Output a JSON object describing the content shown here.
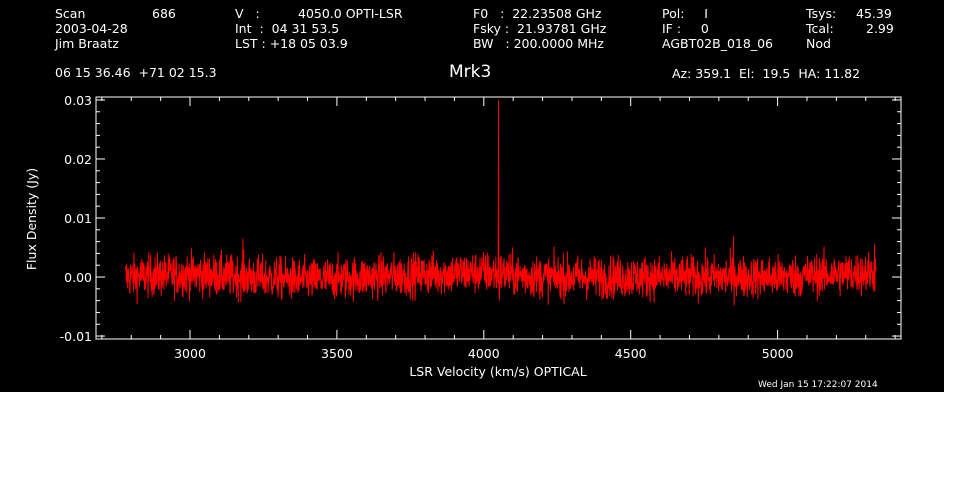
{
  "header": {
    "scan_label": "Scan",
    "scan_value": "686",
    "date": "2003-04-28",
    "observer": "Jim Braatz",
    "v_label": "V   :",
    "v_value": "4050.0 OPTI-LSR",
    "int_line": "Int  :  04 31 53.5",
    "lst_line": "LST : +18 05 03.9",
    "f0_line": "F0   :  22.23508 GHz",
    "fsky_line": "Fsky :  21.93781 GHz",
    "bw_line": "BW   : 200.0000 MHz",
    "pol_line": "Pol:     I",
    "if_line": "IF :     0",
    "project": "AGBT02B_018_06",
    "tsys_label": "Tsys:",
    "tsys_value": "45.39",
    "tcal_label": "Tcal:",
    "tcal_value": "2.99",
    "mode": "Nod",
    "coords": "06 15 36.46  +71 02 15.3",
    "target": "Mrk3",
    "pointing": "Az: 359.1  El:  19.5  HA: 11.82",
    "timestamp": "Wed Jan 15 17:22:07 2014"
  },
  "colors": {
    "background": "#000000",
    "axes": "#ffffff",
    "trace": "#ff0000"
  },
  "chart_data": {
    "type": "line",
    "xlabel": "LSR Velocity (km/s) OPTICAL",
    "ylabel": "Flux Density (Jy)",
    "xlim": [
      2680,
      5420
    ],
    "ylim": [
      -0.0105,
      0.0305
    ],
    "xticks": [
      3000,
      3500,
      4000,
      4500,
      5000
    ],
    "xtick_labels": [
      "3000",
      "3500",
      "4000",
      "4500",
      "5000"
    ],
    "yticks": [
      -0.01,
      0.0,
      0.01,
      0.02,
      0.03
    ],
    "ytick_labels": [
      "-0.01",
      "0.00",
      "0.01",
      "0.02",
      "0.03"
    ],
    "grid": false,
    "series": [
      {
        "x_start": 2780,
        "x_end": 5335,
        "noise_rms": 0.0018,
        "baseline": [
          [
            2780,
            0.0
          ],
          [
            3000,
            0.0005
          ],
          [
            3400,
            -0.0005
          ],
          [
            3800,
            0.0005
          ],
          [
            4000,
            0.0008
          ],
          [
            4200,
            0.0
          ],
          [
            4600,
            0.0
          ],
          [
            5000,
            0.0
          ],
          [
            5335,
            0.0008
          ]
        ],
        "spikes": [
          [
            3180,
            0.0065
          ],
          [
            4050,
            0.03
          ],
          [
            4053,
            -0.004
          ],
          [
            4850,
            0.007
          ],
          [
            5330,
            0.0055
          ]
        ]
      }
    ]
  }
}
